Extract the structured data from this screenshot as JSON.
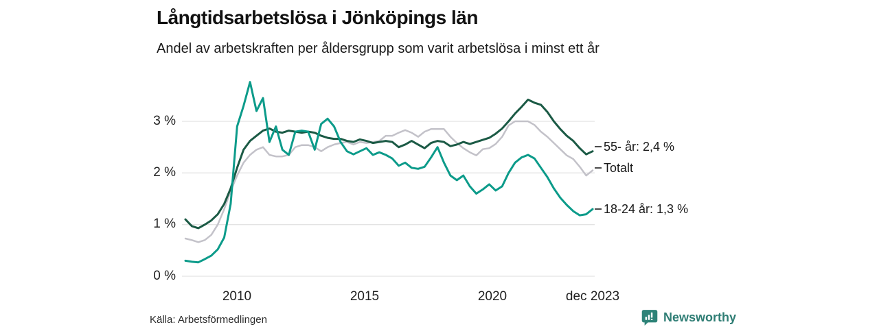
{
  "header": {
    "title": "Långtidsarbetslösa i Jönköpings län",
    "subtitle": "Andel av arbetskraften per åldersgrupp som varit arbetslösa i minst ett år"
  },
  "chart_data": {
    "type": "line",
    "title": "Långtidsarbetslösa i Jönköpings län",
    "subtitle": "Andel av arbetskraften per åldersgrupp som varit arbetslösa i minst ett år",
    "unit": "% av arbetskraften",
    "x_start": 2008.0,
    "x_end": 2023.92,
    "ylim": [
      0,
      3.9
    ],
    "grid": "horizontal",
    "legend_position": "right-of-line-ends",
    "y_ticks": [
      {
        "value": 0,
        "label": "0 %"
      },
      {
        "value": 1,
        "label": "1 %"
      },
      {
        "value": 2,
        "label": "2 %"
      },
      {
        "value": 3,
        "label": "3 %"
      }
    ],
    "x_ticks": [
      {
        "value": 2010,
        "label": "2010"
      },
      {
        "value": 2015,
        "label": "2015"
      },
      {
        "value": 2020,
        "label": "2020"
      },
      {
        "value": 2023.92,
        "label": "dec 2023"
      }
    ],
    "series": [
      {
        "name": "Totalt",
        "end_label": "Totalt",
        "end_value": 2.05,
        "color": "#c3c2c9",
        "width": 2.5,
        "values": [
          0.73,
          0.7,
          0.66,
          0.7,
          0.8,
          1.0,
          1.3,
          1.65,
          1.95,
          2.2,
          2.35,
          2.45,
          2.5,
          2.35,
          2.32,
          2.32,
          2.35,
          2.5,
          2.54,
          2.54,
          2.5,
          2.42,
          2.5,
          2.55,
          2.58,
          2.6,
          2.55,
          2.6,
          2.58,
          2.6,
          2.62,
          2.72,
          2.72,
          2.78,
          2.83,
          2.78,
          2.7,
          2.8,
          2.85,
          2.85,
          2.85,
          2.7,
          2.58,
          2.48,
          2.4,
          2.34,
          2.46,
          2.48,
          2.56,
          2.7,
          2.92,
          3.0,
          3.0,
          3.0,
          2.93,
          2.8,
          2.7,
          2.58,
          2.46,
          2.34,
          2.27,
          2.12,
          1.95,
          2.05
        ]
      },
      {
        "name": "55- år",
        "end_label": "55- år: 2,4 %",
        "end_value": 2.4,
        "color": "#1b5a45",
        "width": 3,
        "values": [
          1.1,
          0.97,
          0.93,
          1.0,
          1.08,
          1.2,
          1.4,
          1.7,
          2.1,
          2.45,
          2.62,
          2.72,
          2.82,
          2.86,
          2.8,
          2.78,
          2.82,
          2.8,
          2.78,
          2.8,
          2.78,
          2.72,
          2.68,
          2.66,
          2.66,
          2.62,
          2.6,
          2.65,
          2.62,
          2.58,
          2.6,
          2.62,
          2.6,
          2.5,
          2.55,
          2.62,
          2.55,
          2.48,
          2.58,
          2.62,
          2.6,
          2.52,
          2.55,
          2.6,
          2.56,
          2.6,
          2.64,
          2.68,
          2.76,
          2.86,
          3.0,
          3.15,
          3.28,
          3.42,
          3.36,
          3.32,
          3.18,
          3.0,
          2.85,
          2.72,
          2.62,
          2.48,
          2.36,
          2.42
        ]
      },
      {
        "name": "18-24 år",
        "end_label": "18-24 år: 1,3 %",
        "end_value": 1.3,
        "color": "#0c9b8a",
        "width": 3,
        "values": [
          0.3,
          0.28,
          0.27,
          0.33,
          0.4,
          0.52,
          0.75,
          1.4,
          2.9,
          3.3,
          3.76,
          3.2,
          3.45,
          2.6,
          2.9,
          2.45,
          2.35,
          2.8,
          2.82,
          2.8,
          2.45,
          2.95,
          3.05,
          2.9,
          2.6,
          2.42,
          2.36,
          2.42,
          2.48,
          2.35,
          2.4,
          2.35,
          2.28,
          2.14,
          2.2,
          2.1,
          2.08,
          2.12,
          2.3,
          2.5,
          2.2,
          1.95,
          1.86,
          1.95,
          1.74,
          1.6,
          1.68,
          1.78,
          1.66,
          1.74,
          2.0,
          2.2,
          2.3,
          2.35,
          2.28,
          2.1,
          1.92,
          1.7,
          1.52,
          1.38,
          1.26,
          1.18,
          1.2,
          1.3
        ]
      }
    ]
  },
  "footer": {
    "source": "Källa: Arbetsförmedlingen",
    "brand": "Newsworthy",
    "brand_color": "#2e7d74"
  }
}
